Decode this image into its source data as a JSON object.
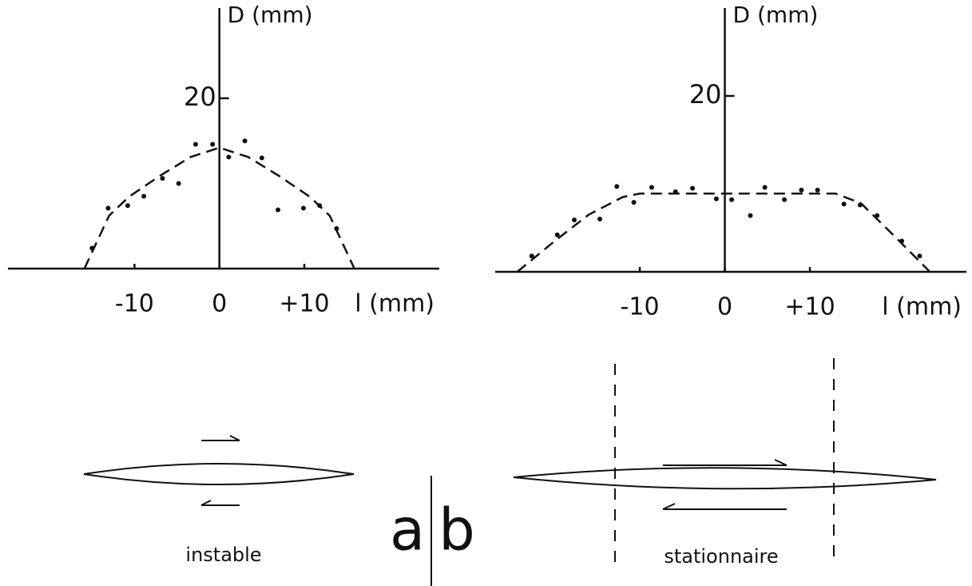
{
  "chart_data": [
    {
      "type": "scatter",
      "panel": "a",
      "annotation": "instable",
      "ylabel": "D (mm)",
      "xlabel": "l (mm)",
      "xlim": [
        -24.9,
        25.9
      ],
      "ylim": [
        0,
        30.6
      ],
      "xticks": [
        -10,
        0,
        {
          "value": 10,
          "label": "+10"
        }
      ],
      "yticks": [
        20
      ],
      "series": [
        {
          "style": "points",
          "color": "#111",
          "x": [
            -15.0,
            -13.1,
            -10.8,
            -8.9,
            -6.7,
            -4.8,
            -2.8,
            -0.8,
            1.1,
            3.0,
            5.0,
            6.9,
            9.9,
            11.8,
            13.8
          ],
          "values": [
            2.4,
            7.1,
            7.4,
            8.5,
            10.6,
            10.0,
            14.6,
            14.6,
            13.1,
            15.0,
            13.0,
            6.9,
            7.1,
            7.4,
            4.7
          ]
        },
        {
          "style": "dashed",
          "color": "#111",
          "x": [
            -15.9,
            -13,
            -10.7,
            -7,
            -3.4,
            0,
            3.4,
            7,
            10.7,
            13,
            15.9
          ],
          "values": [
            0,
            6.2,
            8.4,
            10.9,
            13.1,
            14.2,
            13.1,
            10.9,
            8.4,
            6.2,
            0
          ]
        }
      ]
    },
    {
      "type": "scatter",
      "panel": "b",
      "annotation": "stationnaire",
      "ylabel": "D (mm)",
      "xlabel": "l (mm)",
      "xlim": [
        -27,
        28.4
      ],
      "ylim": [
        0,
        30
      ],
      "xticks": [
        -10,
        0,
        {
          "value": 10,
          "label": "+10"
        }
      ],
      "yticks": [
        20
      ],
      "series": [
        {
          "style": "points",
          "color": "#111",
          "x": [
            -22.7,
            -19.7,
            -17.7,
            -14.7,
            -12.7,
            -10.7,
            -8.6,
            -5.8,
            -3.8,
            -1.0,
            0.8,
            3.0,
            4.7,
            7.0,
            9.0,
            10.9,
            14.0,
            15.9,
            17.9,
            20.8,
            22.9
          ],
          "values": [
            1.8,
            4.2,
            5.9,
            6.0,
            9.7,
            7.9,
            9.6,
            9.1,
            9.5,
            8.3,
            8.2,
            6.4,
            9.6,
            8.2,
            9.3,
            9.3,
            7.7,
            7.6,
            6.4,
            3.5,
            1.8
          ]
        },
        {
          "style": "dashed",
          "color": "#111",
          "x": [
            -24.4,
            -20,
            -16,
            -12,
            -10,
            0,
            13,
            16,
            20,
            24.1
          ],
          "values": [
            0,
            3.5,
            6.5,
            8.5,
            8.9,
            8.9,
            8.9,
            7.8,
            4.0,
            0
          ]
        }
      ]
    }
  ]
}
